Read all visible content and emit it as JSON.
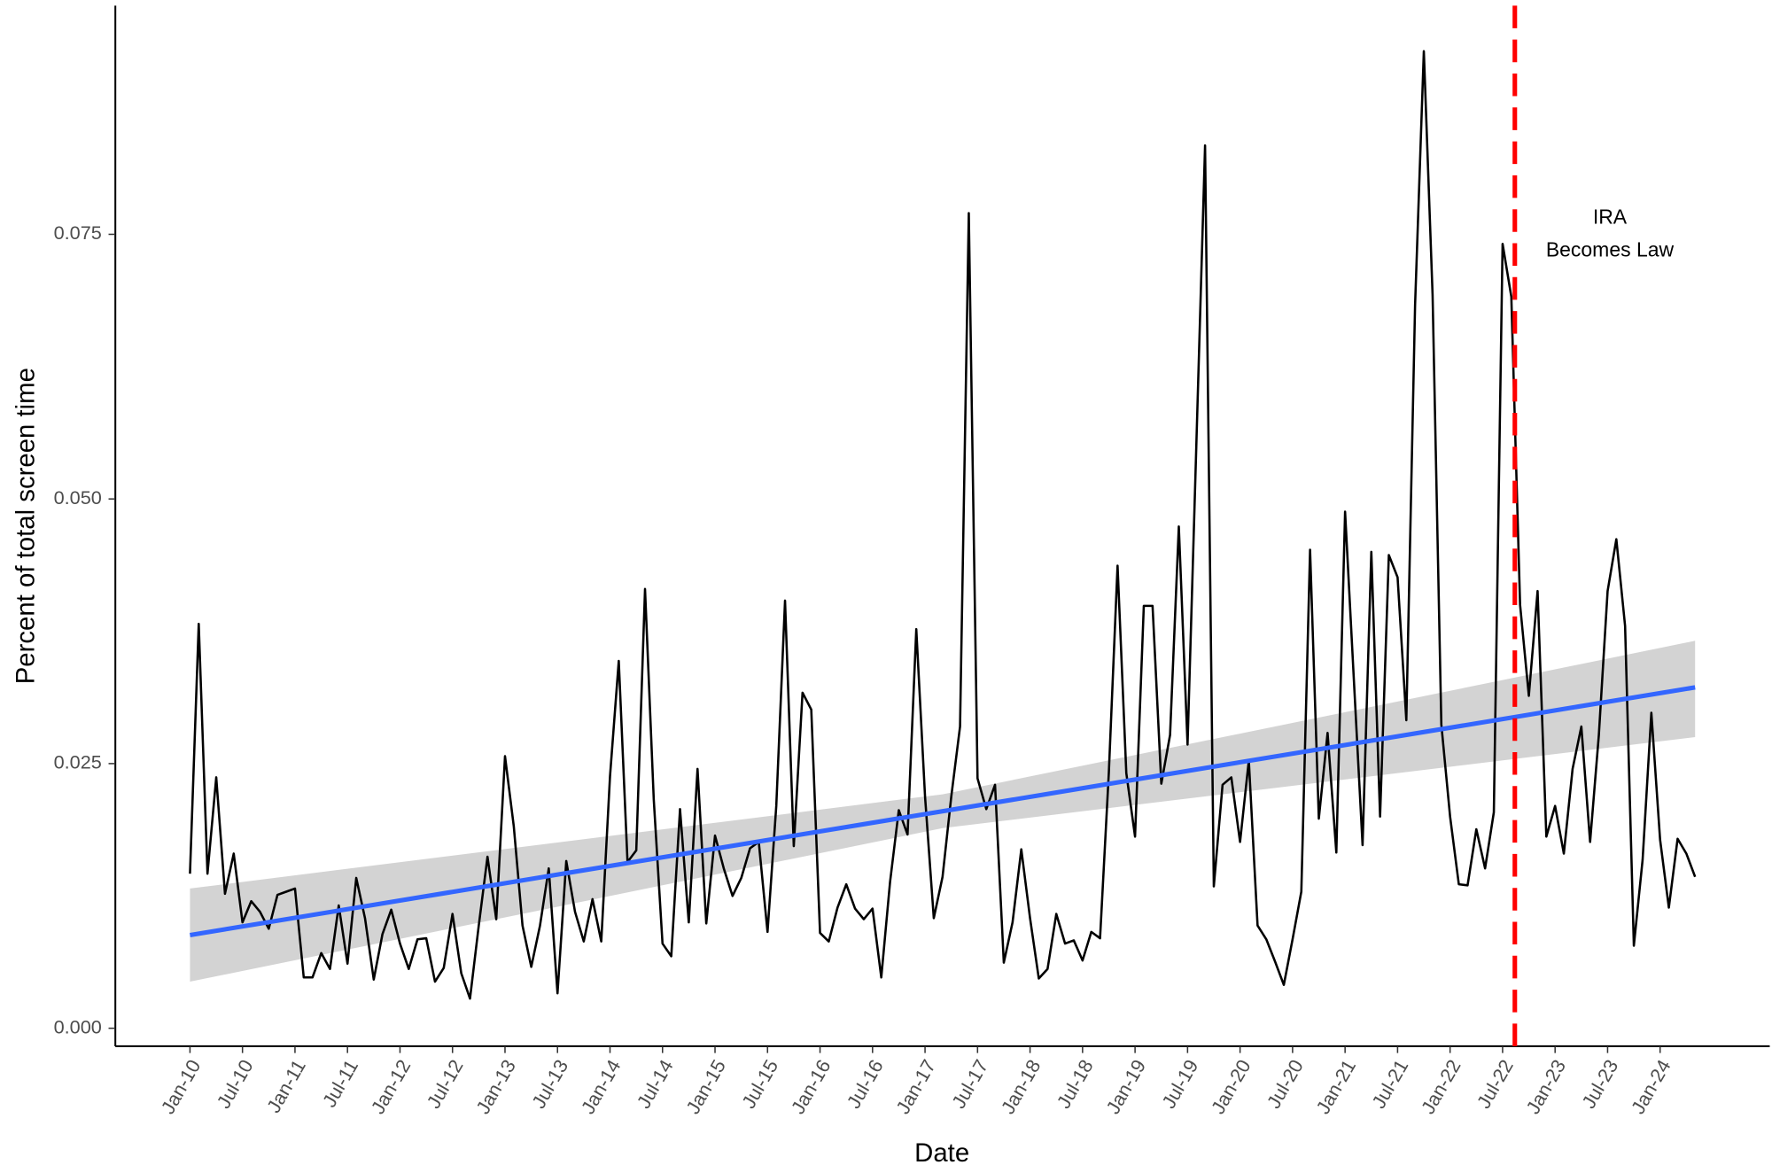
{
  "chart_data": {
    "type": "line",
    "x_label": "Date",
    "y_label": "Percent of total screen time",
    "categories": [
      "Jan-10",
      null,
      null,
      null,
      null,
      null,
      "Jul-10",
      null,
      null,
      null,
      null,
      null,
      "Jan-11",
      null,
      null,
      null,
      null,
      null,
      "Jul-11",
      null,
      null,
      null,
      null,
      null,
      "Jan-12",
      null,
      null,
      null,
      null,
      null,
      "Jul-12",
      null,
      null,
      null,
      null,
      null,
      "Jan-13",
      null,
      null,
      null,
      null,
      null,
      "Jul-13",
      null,
      null,
      null,
      null,
      null,
      "Jan-14",
      null,
      null,
      null,
      null,
      null,
      "Jul-14",
      null,
      null,
      null,
      null,
      null,
      "Jan-15",
      null,
      null,
      null,
      null,
      null,
      "Jul-15",
      null,
      null,
      null,
      null,
      null,
      "Jan-16",
      null,
      null,
      null,
      null,
      null,
      "Jul-16",
      null,
      null,
      null,
      null,
      null,
      "Jan-17",
      null,
      null,
      null,
      null,
      null,
      "Jul-17",
      null,
      null,
      null,
      null,
      null,
      "Jan-18",
      null,
      null,
      null,
      null,
      null,
      "Jul-18",
      null,
      null,
      null,
      null,
      null,
      "Jan-19",
      null,
      null,
      null,
      null,
      null,
      "Jul-19",
      null,
      null,
      null,
      null,
      null,
      "Jan-20",
      null,
      null,
      null,
      null,
      null,
      "Jul-20",
      null,
      null,
      null,
      null,
      null,
      "Jan-21",
      null,
      null,
      null,
      null,
      null,
      "Jul-21",
      null,
      null,
      null,
      null,
      null,
      "Jan-22",
      null,
      null,
      null,
      null,
      null,
      "Jul-22",
      null,
      null,
      null,
      null,
      null,
      "Jan-23",
      null,
      null,
      null,
      null,
      null,
      "Jul-23",
      null,
      null,
      null,
      null,
      null,
      "Jan-24",
      null,
      null,
      null,
      null
    ],
    "series": [
      {
        "color": "#000000",
        "values": [
          0.0146,
          0.0382,
          0.0146,
          0.0237,
          0.0127,
          0.0165,
          0.01,
          0.012,
          0.011,
          0.0094,
          0.0126,
          0.0129,
          0.0132,
          0.0048,
          0.0048,
          0.0071,
          0.0056,
          0.0116,
          0.0061,
          0.0142,
          0.0104,
          0.0046,
          0.0089,
          0.0112,
          0.008,
          0.0056,
          0.0084,
          0.0085,
          0.0044,
          0.0057,
          0.0108,
          0.0052,
          0.0028,
          0.0097,
          0.0162,
          0.0103,
          0.0257,
          0.0191,
          0.0097,
          0.0058,
          0.0097,
          0.0151,
          0.0033,
          0.0158,
          0.011,
          0.0082,
          0.0122,
          0.0082,
          0.0238,
          0.0347,
          0.0157,
          0.0168,
          0.0415,
          0.0216,
          0.008,
          0.0068,
          0.0207,
          0.01,
          0.0245,
          0.0099,
          0.0182,
          0.0151,
          0.0125,
          0.0142,
          0.017,
          0.0176,
          0.0091,
          0.021,
          0.0404,
          0.0172,
          0.0317,
          0.0301,
          0.009,
          0.0082,
          0.0114,
          0.0136,
          0.0113,
          0.0103,
          0.0113,
          0.0048,
          0.0138,
          0.0206,
          0.0183,
          0.0377,
          0.0219,
          0.0104,
          0.0143,
          0.0219,
          0.0285,
          0.077,
          0.0236,
          0.0207,
          0.023,
          0.0062,
          0.01,
          0.0169,
          0.0104,
          0.0047,
          0.0056,
          0.0108,
          0.008,
          0.0083,
          0.0064,
          0.0091,
          0.0085,
          0.0241,
          0.0437,
          0.0241,
          0.0181,
          0.0399,
          0.0399,
          0.0231,
          0.0277,
          0.0474,
          0.0268,
          0.055,
          0.0834,
          0.0134,
          0.023,
          0.0237,
          0.0176,
          0.0253,
          0.0097,
          0.0084,
          0.0063,
          0.0041,
          0.0084,
          0.0129,
          0.0452,
          0.0198,
          0.0279,
          0.0166,
          0.0488,
          0.033,
          0.0173,
          0.045,
          0.02,
          0.0447,
          0.0426,
          0.0291,
          0.0683,
          0.0923,
          0.0693,
          0.0287,
          0.02,
          0.0136,
          0.0135,
          0.0188,
          0.0151,
          0.0204,
          0.0741,
          0.0691,
          0.04,
          0.0314,
          0.0413,
          0.0181,
          0.021,
          0.0165,
          0.0245,
          0.0285,
          0.0176,
          0.0277,
          0.0413,
          0.0462,
          0.038,
          0.0078,
          0.0159,
          0.0298,
          0.0178,
          0.0114,
          0.0179,
          0.0165,
          0.0143
        ]
      }
    ],
    "trend": {
      "color": "#3366ff",
      "values": [
        0.0088,
        0.0322
      ],
      "band": {
        "color": "#d3d3d3",
        "lower": [
          0.0044,
          0.0189,
          0.0275
        ],
        "upper": [
          0.0132,
          0.0221,
          0.0366
        ]
      }
    },
    "vline": {
      "index": 151.4,
      "color": "#ff0000",
      "label": [
        "IRA",
        "Becomes Law"
      ]
    },
    "ylim": [
      -0.0017,
      0.0966
    ],
    "yticks": [
      {
        "value": 0,
        "label": "0.000"
      },
      0.025,
      {
        "value": 0.05,
        "label": "0.050"
      },
      0.075
    ]
  }
}
